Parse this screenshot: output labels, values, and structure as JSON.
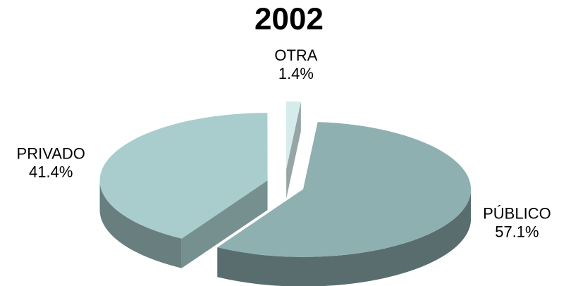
{
  "chart_data": {
    "type": "pie",
    "title": "2002",
    "categories": [
      "PÚBLICO",
      "PRIVADO",
      "OTRA"
    ],
    "values": [
      57.1,
      41.4,
      1.4
    ],
    "value_labels": [
      "57.1%",
      "41.4%",
      "1.4%"
    ],
    "colors": [
      "#8fb0b1",
      "#a9cdcd",
      "#d6ecec"
    ]
  }
}
